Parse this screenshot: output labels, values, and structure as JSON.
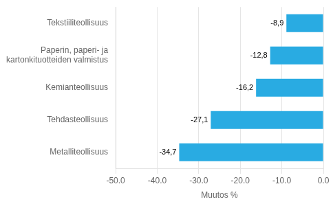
{
  "chart_data": {
    "type": "bar",
    "orientation": "horizontal",
    "categories": [
      "Metalliteollisuus",
      "Tehdasteollisuus",
      "Kemianteollisuus",
      "Paperin, paperi- ja kartonkituotteiden valmistus",
      "Tekstiiliteollisuus"
    ],
    "values": [
      -34.7,
      -27.1,
      -16.2,
      -12.8,
      -8.9
    ],
    "value_labels": [
      "-34,7",
      "-27,1",
      "-16,2",
      "-12,8",
      "-8,9"
    ],
    "data_labels": true,
    "color": "#29abe2",
    "xlabel": "Muutos %",
    "xlim": [
      -50.0,
      0.0
    ],
    "xticks": [
      {
        "value": -50.0,
        "label": "-50.0"
      },
      {
        "value": -40.0,
        "label": "-40.0"
      },
      {
        "value": -30.0,
        "label": "-30.0"
      },
      {
        "value": -20.0,
        "label": "-20.0"
      },
      {
        "value": -10.0,
        "label": "-10.0"
      },
      {
        "value": 0.0,
        "label": "0.0"
      }
    ],
    "grid": true
  }
}
